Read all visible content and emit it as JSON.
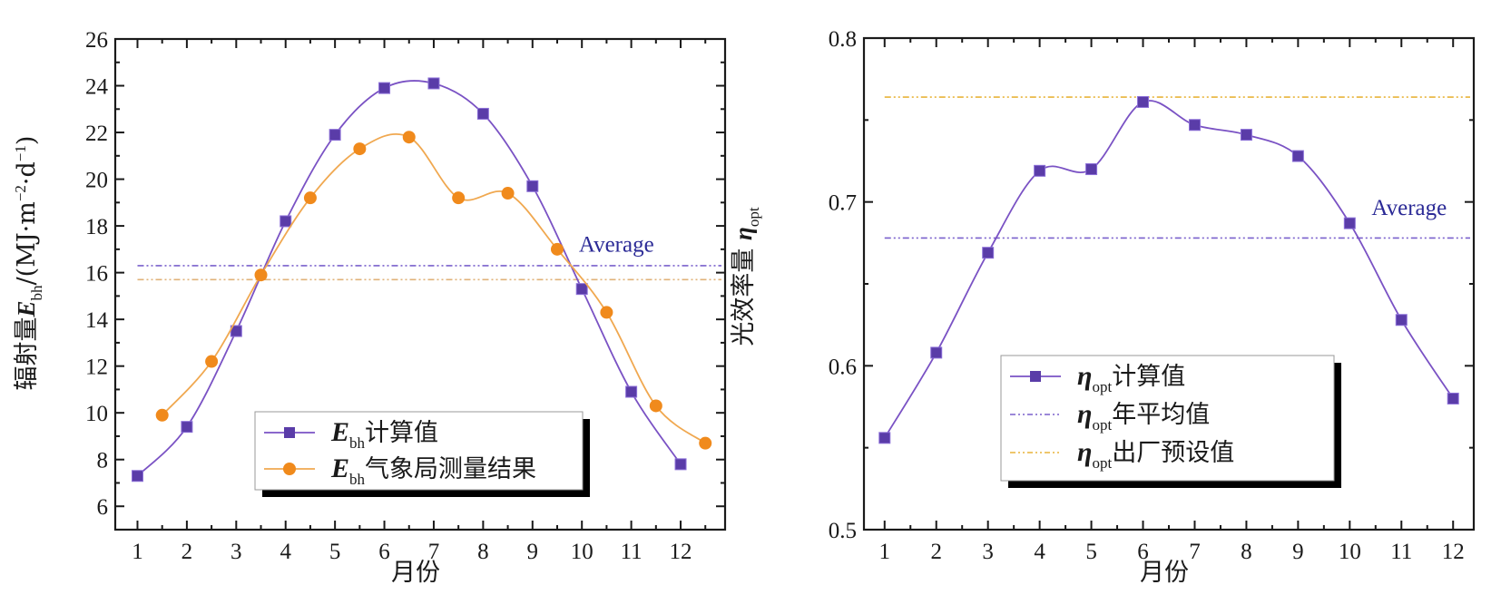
{
  "colors": {
    "calc": "#5a3ca8",
    "calc_line": "#7a52c4",
    "measured": "#f08a1c",
    "measured_line": "#f0a850",
    "avg_purple": "#7a60cc",
    "avg_orange": "#e0b27a",
    "preset": "#e8b43a",
    "annotation": "#2b2a96",
    "axis": "#1a1a1a"
  },
  "chart_data": [
    {
      "type": "line",
      "id": "left",
      "xlabel": "月份",
      "ylabel": "辐射量E_bh/(MJ·m⁻²·d⁻¹)",
      "ylabel_parts": {
        "prefix": "辐射量",
        "symbol": "E",
        "sub": "bh",
        "unit": "/(MJ·m",
        "exp1": "−2",
        "mid": "·d",
        "exp2": "−1",
        "close": ")"
      },
      "xlim": [
        0.55,
        12.9
      ],
      "ylim": [
        5,
        26
      ],
      "xticks": [
        1,
        2,
        3,
        4,
        5,
        6,
        7,
        8,
        9,
        10,
        11,
        12
      ],
      "yticks": [
        6,
        8,
        10,
        12,
        14,
        16,
        18,
        20,
        22,
        24,
        26
      ],
      "grid": false,
      "series": [
        {
          "name": "E_bh计算值",
          "legend_symbol": "E",
          "legend_sub": "bh",
          "legend_suffix": "计算值",
          "marker": "square",
          "color_key": "calc",
          "x": [
            1,
            2,
            3,
            4,
            5,
            6,
            7,
            8,
            9,
            10,
            11,
            12
          ],
          "values": [
            7.3,
            9.4,
            13.5,
            18.2,
            21.9,
            23.9,
            24.1,
            22.8,
            19.7,
            15.3,
            10.9,
            7.8
          ]
        },
        {
          "name": "E_bh气象局测量结果",
          "legend_symbol": "E",
          "legend_sub": "bh",
          "legend_suffix": "气象局测量结果",
          "marker": "circle",
          "color_key": "measured",
          "x": [
            1.5,
            2.5,
            3.5,
            4.5,
            5.5,
            6.5,
            7.5,
            8.5,
            9.5,
            10.5,
            11.5,
            12.5
          ],
          "values": [
            9.9,
            12.2,
            15.9,
            19.2,
            21.3,
            21.8,
            19.2,
            19.4,
            17.0,
            14.3,
            10.3,
            8.7
          ]
        }
      ],
      "reference_lines": [
        {
          "name": "calc-average",
          "value": 16.3,
          "color_key": "avg_purple"
        },
        {
          "name": "measured-average",
          "value": 15.7,
          "color_key": "avg_orange"
        }
      ],
      "annotations": [
        {
          "text": "Average",
          "x": 10.7,
          "y": 16.9
        }
      ],
      "legend": "bottom-center"
    },
    {
      "type": "line",
      "id": "right",
      "xlabel": "月份",
      "ylabel": "光效率量 η_opt",
      "ylabel_parts": {
        "prefix": "光效率量 ",
        "symbol": "η",
        "sub": "opt"
      },
      "xlim": [
        0.6,
        12.4
      ],
      "ylim": [
        0.5,
        0.8
      ],
      "xticks": [
        1,
        2,
        3,
        4,
        5,
        6,
        7,
        8,
        9,
        10,
        11,
        12
      ],
      "yticks": [
        0.5,
        0.6,
        0.7,
        0.8
      ],
      "yminor": [
        0.55,
        0.65,
        0.75
      ],
      "grid": false,
      "series": [
        {
          "name": "η_opt计算值",
          "legend_symbol": "η",
          "legend_sub": "opt",
          "legend_suffix": "计算值",
          "marker": "square",
          "color_key": "calc",
          "x": [
            1,
            2,
            3,
            4,
            5,
            6,
            7,
            8,
            9,
            10,
            11,
            12
          ],
          "values": [
            0.556,
            0.608,
            0.669,
            0.719,
            0.72,
            0.761,
            0.747,
            0.741,
            0.728,
            0.687,
            0.628,
            0.58
          ]
        }
      ],
      "reference_lines": [
        {
          "name": "annual-average",
          "value": 0.678,
          "color_key": "avg_purple",
          "legend_symbol": "η",
          "legend_sub": "opt",
          "legend_suffix": "年平均值"
        },
        {
          "name": "factory-preset",
          "value": 0.764,
          "color_key": "preset",
          "legend_symbol": "η",
          "legend_sub": "opt",
          "legend_suffix": "出厂预设值"
        }
      ],
      "annotations": [
        {
          "text": "Average",
          "x": 11.15,
          "y": 0.692
        }
      ],
      "legend": "bottom-center"
    }
  ]
}
